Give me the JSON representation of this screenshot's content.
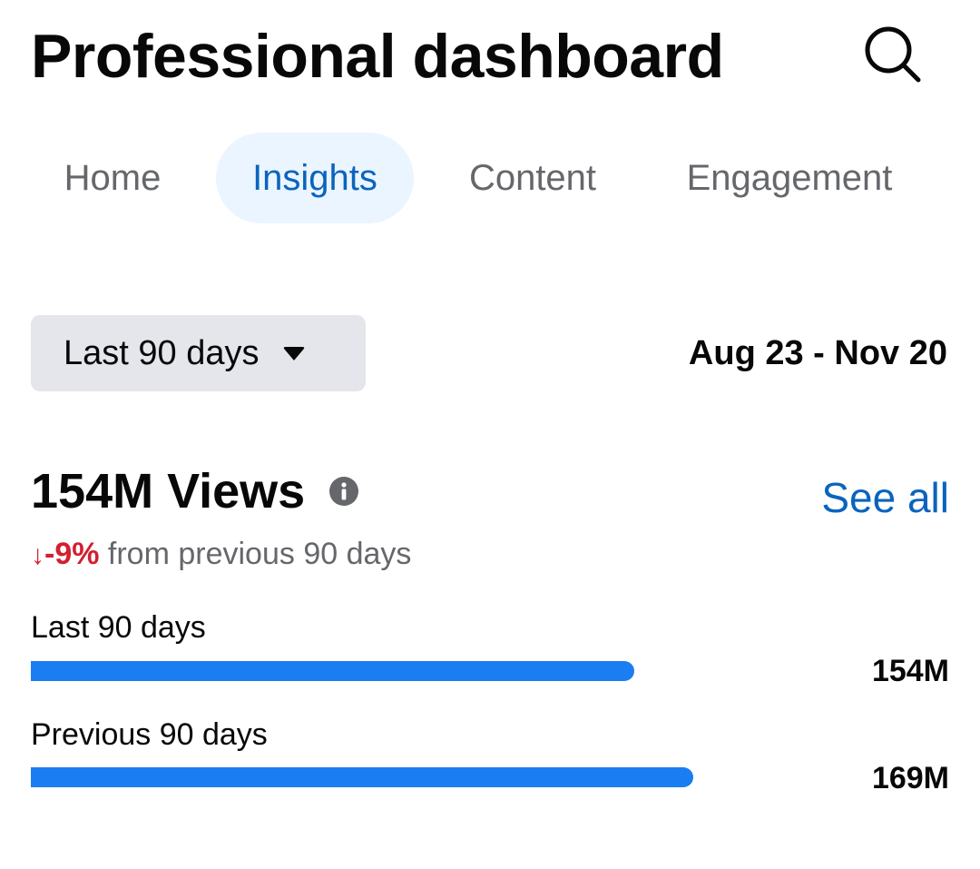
{
  "header": {
    "title": "Professional dashboard",
    "search_icon": "search-icon"
  },
  "tabs": [
    {
      "label": "Home",
      "active": false
    },
    {
      "label": "Insights",
      "active": true
    },
    {
      "label": "Content",
      "active": false
    },
    {
      "label": "Engagement",
      "active": false
    }
  ],
  "filter": {
    "range_label": "Last 90 days",
    "caret_icon": "caret-down-icon",
    "date_range": "Aug 23 - Nov 20"
  },
  "views": {
    "title": "154M Views",
    "info_icon": "info-icon",
    "see_all": "See all",
    "delta_arrow": "↓",
    "delta_value": "-9%",
    "delta_text": " from previous 90 days",
    "rows": [
      {
        "label": "Last 90 days",
        "value": "154M",
        "amount": 154
      },
      {
        "label": "Previous 90 days",
        "value": "169M",
        "amount": 169
      }
    ]
  },
  "colors": {
    "accent": "#0a64bd",
    "bar": "#1b7df2",
    "negative": "#d31f2f",
    "tab_active_bg": "#ebf5ff"
  }
}
